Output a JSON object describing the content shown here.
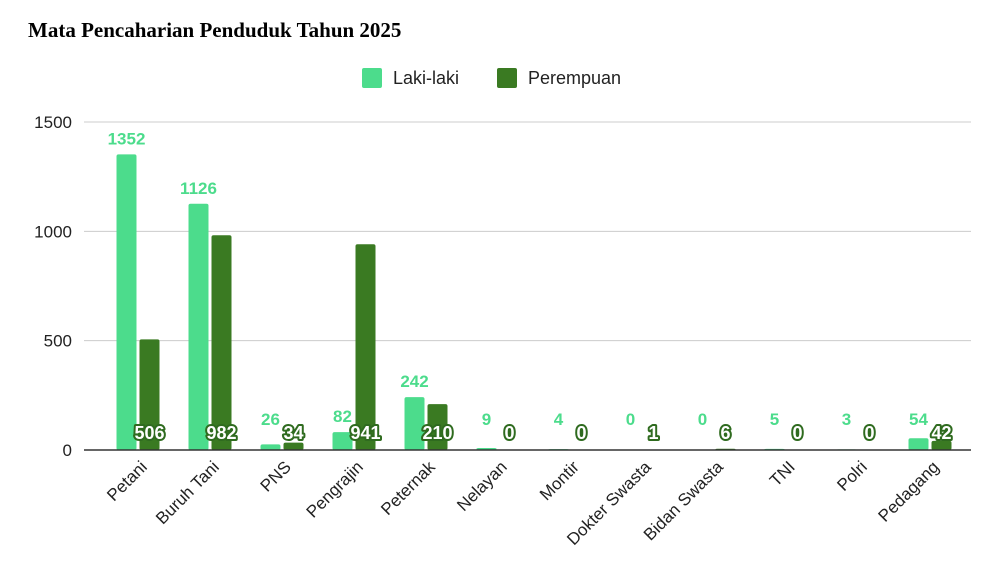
{
  "chart_data": {
    "type": "bar",
    "title": "Mata Pencaharian Penduduk Tahun 2025",
    "categories": [
      "Petani",
      "Buruh Tani",
      "PNS",
      "Pengrajin",
      "Peternak",
      "Nelayan",
      "Montir",
      "Dokter Swasta",
      "Bidan Swasta",
      "TNI",
      "Polri",
      "Pedagang"
    ],
    "series": [
      {
        "name": "Laki-laki",
        "color": "#4cdc8c",
        "values": [
          1352,
          1126,
          26,
          82,
          242,
          9,
          4,
          0,
          0,
          5,
          3,
          54
        ]
      },
      {
        "name": "Perempuan",
        "color": "#3a7a22",
        "values": [
          506,
          982,
          34,
          941,
          210,
          0,
          0,
          1,
          6,
          0,
          0,
          42
        ]
      }
    ],
    "ylim": [
      0,
      1500
    ],
    "yticks": [
      0,
      500,
      1000,
      1500
    ],
    "grid": true,
    "legend_position": "top-center",
    "xlabel": "",
    "ylabel": ""
  }
}
